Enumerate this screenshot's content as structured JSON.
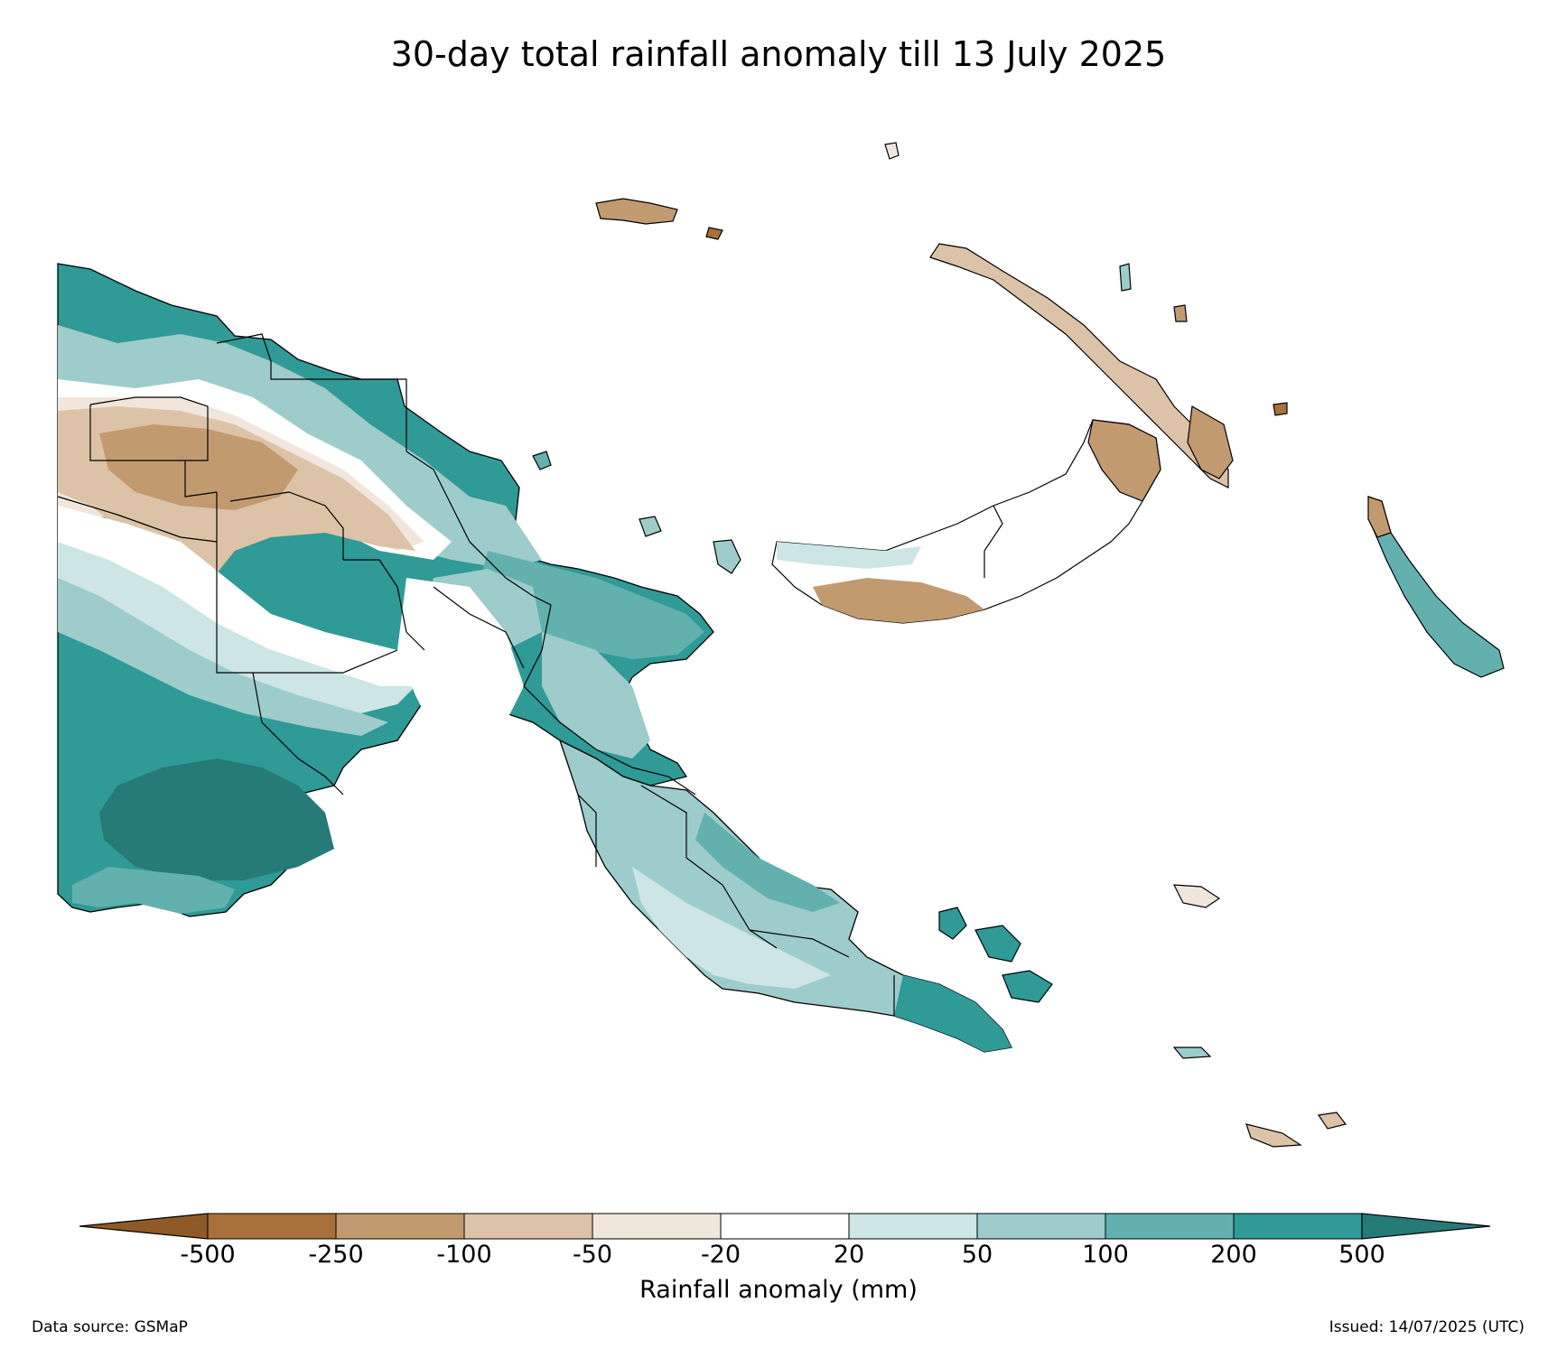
{
  "title": "30-day total rainfall anomaly till 13 July 2025",
  "colorbar": {
    "label": "Rainfall anomaly (mm)",
    "ticks": [
      "-500",
      "-250",
      "-100",
      "-50",
      "-20",
      "20",
      "50",
      "100",
      "200",
      "500"
    ],
    "colors": [
      "#8f5a28",
      "#a8703a",
      "#c29a70",
      "#dcc3a7",
      "#f0e6dc",
      "#ffffff",
      "#cde6e5",
      "#9dcccb",
      "#62b1ae",
      "#2f9a96",
      "#267a77"
    ],
    "extend": "both"
  },
  "footer": {
    "source": "Data source: GSMaP",
    "issued": "Issued: 14/07/2025 (UTC)"
  }
}
